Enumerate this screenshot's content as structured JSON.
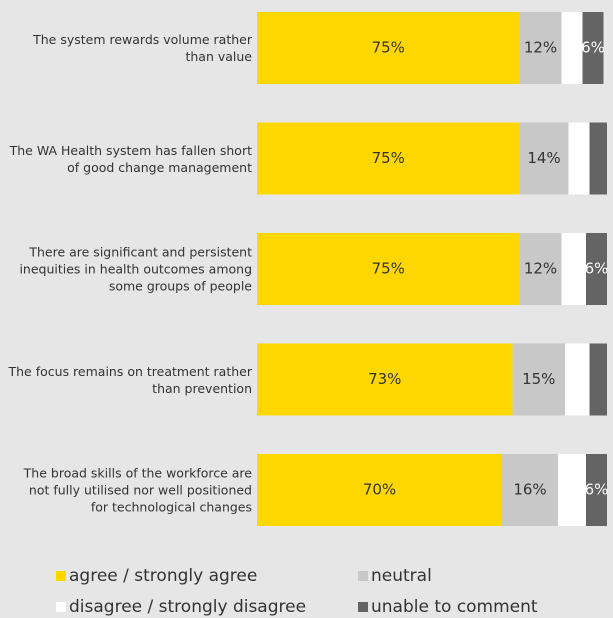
{
  "chart_data": {
    "type": "stacked-bar-horizontal",
    "categories": [
      "The system rewards volume rather than value",
      "The WA Health system has fallen short of good change management",
      "There are significant and persistent inequities in health outcomes among some groups of people",
      "The focus remains on treatment rather than prevention",
      "The broad skills of the workforce are not fully utilised nor well positioned for technological changes"
    ],
    "series": [
      {
        "name": "agree / strongly agree",
        "color": "#ffd700",
        "values": [
          75,
          75,
          75,
          73,
          70
        ],
        "value_labels": [
          "75%",
          "75%",
          "75%",
          "73%",
          "70%"
        ]
      },
      {
        "name": "neutral",
        "color": "#c8c8c8",
        "values": [
          12,
          14,
          12,
          15,
          16
        ],
        "value_labels": [
          "12%",
          "14%",
          "12%",
          "15%",
          "16%"
        ]
      },
      {
        "name": "disagree / strongly disagree",
        "color": "#ffffff",
        "values": [
          6,
          6,
          7,
          7,
          8
        ]
      },
      {
        "name": "unable to comment",
        "color": "#646464",
        "values": [
          6,
          5,
          6,
          5,
          6
        ],
        "value_labels": [
          "6%",
          null,
          "6%",
          null,
          "6%"
        ]
      }
    ],
    "xlim": [
      0,
      100
    ]
  }
}
